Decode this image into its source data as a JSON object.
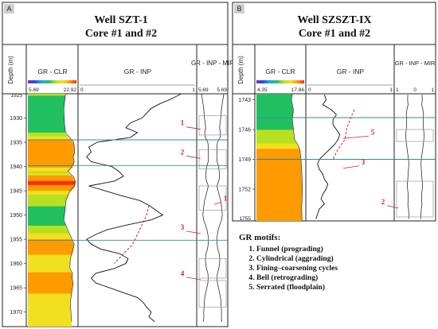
{
  "colors": {
    "panel_bg": "#ffffff",
    "frame": "#222222",
    "label": "#222222",
    "gr_curve": "#111111",
    "motif_line": "#cc2233",
    "marker_line": "#3a8a8a",
    "gr_clr_scale": [
      "#7b2fbf",
      "#2050e0",
      "#18b0e0",
      "#20c060",
      "#b8e020",
      "#f0e020",
      "#ff9a00",
      "#ff2a00"
    ]
  },
  "chart_data": [
    {
      "type": "line",
      "panel_tag": "A",
      "title": "Well SZT-1",
      "subtitle": "Core #1 and #2",
      "depth_label": "Depth (m)",
      "depth_range": [
        1925,
        1973
      ],
      "depth_ticks": [
        1930,
        1935,
        1940,
        1945,
        1950,
        1955,
        1960,
        1965,
        1970
      ],
      "depth_ticks_text": [
        "1930",
        "1935",
        "1940",
        "1945",
        "1950",
        "1955",
        "1960",
        "1965",
        "1970"
      ],
      "top_clip_label": "1925",
      "tracks": [
        {
          "name": "GR - CLR",
          "scale_min": "5.69",
          "scale_max": "22.92",
          "kind": "color_fill"
        },
        {
          "name": "GR - INP",
          "scale_min": "0",
          "scale_max": "1",
          "kind": "curve"
        },
        {
          "name": "GR - INP - MIR",
          "scale_min": "5.69",
          "scale_max": "5.69",
          "kind": "mirror"
        }
      ],
      "gr_inp": {
        "depths": [
          1925,
          1926,
          1927,
          1928,
          1929,
          1930,
          1931,
          1932,
          1933,
          1934,
          1935,
          1936,
          1937,
          1938,
          1939,
          1940,
          1941,
          1942,
          1943,
          1944,
          1945,
          1946,
          1947,
          1948,
          1949,
          1950,
          1951,
          1952,
          1953,
          1954,
          1955,
          1956,
          1957,
          1958,
          1959,
          1960,
          1961,
          1962,
          1963,
          1964,
          1965,
          1966,
          1967,
          1968,
          1969,
          1970,
          1971,
          1972
        ],
        "values": [
          0.88,
          0.8,
          0.7,
          0.62,
          0.58,
          0.54,
          0.44,
          0.4,
          0.5,
          0.44,
          0.15,
          0.08,
          0.1,
          0.06,
          0.1,
          0.28,
          0.34,
          0.38,
          0.3,
          0.08,
          0.22,
          0.36,
          0.52,
          0.6,
          0.66,
          0.72,
          0.62,
          0.42,
          0.24,
          0.14,
          0.06,
          0.1,
          0.18,
          0.35,
          0.42,
          0.4,
          0.3,
          0.14,
          0.1,
          0.14,
          0.26,
          0.38,
          0.5,
          0.55,
          0.58,
          0.62,
          0.6,
          0.65
        ]
      },
      "gr_clr": {
        "depths": [
          1925,
          1928,
          1931,
          1933,
          1935,
          1936,
          1937,
          1938,
          1939,
          1940,
          1941,
          1942,
          1943,
          1944,
          1945,
          1947,
          1949,
          1951,
          1953,
          1955,
          1956,
          1957,
          1959,
          1961,
          1962,
          1963,
          1964,
          1966,
          1968,
          1970,
          1972
        ],
        "values": [
          0.5,
          0.42,
          0.45,
          0.5,
          0.88,
          0.9,
          0.92,
          0.85,
          0.9,
          0.8,
          0.6,
          0.85,
          0.95,
          0.92,
          0.7,
          0.52,
          0.48,
          0.42,
          0.6,
          0.8,
          0.9,
          0.85,
          0.72,
          0.7,
          0.82,
          0.8,
          0.85,
          0.78,
          0.72,
          0.75,
          0.78
        ]
      },
      "marker_depths": [
        1934.5,
        1939.8,
        1955.2
      ],
      "motif_boxes": [
        {
          "depth_top": 1929.5,
          "depth_bottom": 1933.5
        },
        {
          "depth_top": 1936.5,
          "depth_bottom": 1940.5
        },
        {
          "depth_top": 1944.0,
          "depth_bottom": 1949.0
        },
        {
          "depth_top": 1959.0,
          "depth_bottom": 1963.0
        },
        {
          "depth_top": 1963.5,
          "depth_bottom": 1969.0
        }
      ],
      "dashed_motifs": [
        {
          "depths": [
            1948,
            1950,
            1952,
            1954,
            1956,
            1958,
            1960
          ],
          "values": [
            0.6,
            0.58,
            0.54,
            0.5,
            0.46,
            0.38,
            0.3
          ]
        }
      ],
      "annotations": [
        {
          "label": "1",
          "depth": 1931.5
        },
        {
          "label": "2",
          "depth": 1937.5
        },
        {
          "label": "1",
          "depth": 1947.0
        },
        {
          "label": "3",
          "depth": 1953.0
        },
        {
          "label": "4",
          "depth": 1962.5
        }
      ]
    },
    {
      "type": "line",
      "panel_tag": "B",
      "title": "Well SZSZT-IX",
      "subtitle": "Core #1 and #2",
      "depth_label": "Depth (m)",
      "depth_range": [
        1742.4,
        1755.2
      ],
      "depth_ticks": [
        1743,
        1746,
        1749,
        1752
      ],
      "depth_ticks_text": [
        "1743",
        "1746",
        "1749",
        "1752"
      ],
      "bottom_clip_label": "1755",
      "tracks": [
        {
          "name": "GR - CLR",
          "scale_min": "4.35",
          "scale_max": "17.86",
          "kind": "color_fill"
        },
        {
          "name": "GR - INP",
          "scale_min": "0",
          "scale_max": "1",
          "kind": "curve"
        },
        {
          "name": "GR - INP - MIR",
          "scale_min": "1",
          "scale_mid": "0",
          "scale_max": "1",
          "kind": "mirror"
        }
      ],
      "gr_inp": {
        "depths": [
          1742.5,
          1743.0,
          1743.5,
          1744.0,
          1744.5,
          1745.0,
          1745.5,
          1746.0,
          1746.5,
          1747.0,
          1747.5,
          1748.0,
          1748.5,
          1749.0,
          1749.5,
          1750.0,
          1750.5,
          1751.0,
          1751.5,
          1752.0,
          1752.5,
          1753.0,
          1753.5,
          1754.0,
          1754.5,
          1755.0
        ],
        "values": [
          0.2,
          0.22,
          0.18,
          0.28,
          0.34,
          0.3,
          0.3,
          0.34,
          0.38,
          0.36,
          0.32,
          0.26,
          0.2,
          0.14,
          0.12,
          0.14,
          0.18,
          0.2,
          0.24,
          0.22,
          0.18,
          0.16,
          0.2,
          0.14,
          0.12,
          0.1
        ]
      },
      "gr_clr": {
        "depths": [
          1742.4,
          1743.0,
          1744.0,
          1745.0,
          1746.0,
          1747.0,
          1747.5,
          1748.0,
          1749.0,
          1750.0,
          1751.0,
          1752.0,
          1753.0,
          1754.0,
          1755.2
        ],
        "values": [
          0.45,
          0.4,
          0.5,
          0.45,
          0.5,
          0.55,
          0.7,
          0.8,
          0.85,
          0.88,
          0.9,
          0.92,
          0.9,
          0.88,
          0.9
        ]
      },
      "marker_depths": [
        1744.8,
        1749.0
      ],
      "motif_boxes": [
        {
          "depth_top": 1746.0,
          "depth_bottom": 1747.2
        },
        {
          "depth_top": 1751.2,
          "depth_bottom": 1754.8
        }
      ],
      "dashed_motifs": [
        {
          "depths": [
            1744.0,
            1745.0,
            1746.0,
            1747.0,
            1748.0,
            1749.0
          ],
          "values": [
            0.55,
            0.5,
            0.46,
            0.44,
            0.36,
            0.3
          ]
        }
      ],
      "annotations": [
        {
          "label": "5",
          "depth": 1746.5
        },
        {
          "label": "3",
          "depth": 1749.5
        },
        {
          "label": "2",
          "depth": 1753.5
        }
      ]
    }
  ],
  "legend": {
    "title": "GR motifs:",
    "items": [
      "Funnel (prograding)",
      "Cylindrical (aggrading)",
      "Fining–coarsening cycles",
      "Bell (retrograding)",
      "Serrated (floodplain)"
    ]
  }
}
